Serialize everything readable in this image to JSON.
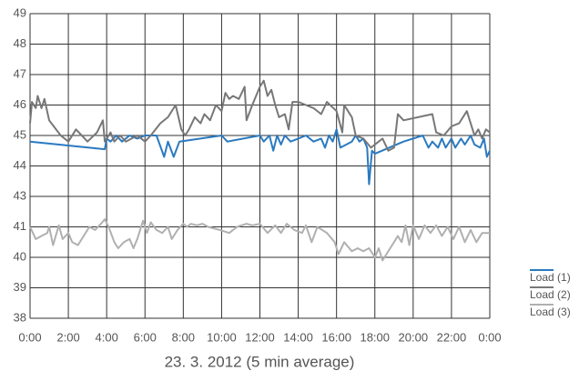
{
  "chart_data": {
    "type": "line",
    "xlabel": "23. 3. 2012 (5 min average)",
    "xlim": [
      0,
      24
    ],
    "xticks": [
      {
        "value": 0,
        "label": "0:00"
      },
      {
        "value": 2,
        "label": "2:00"
      },
      {
        "value": 4,
        "label": "4:00"
      },
      {
        "value": 6,
        "label": "6:00"
      },
      {
        "value": 8,
        "label": "8:00"
      },
      {
        "value": 10,
        "label": "10:00"
      },
      {
        "value": 12,
        "label": "12:00"
      },
      {
        "value": 14,
        "label": "14:00"
      },
      {
        "value": 16,
        "label": "16:00"
      },
      {
        "value": 18,
        "label": "18:00"
      },
      {
        "value": 20,
        "label": "20:00"
      },
      {
        "value": 22,
        "label": "22:00"
      },
      {
        "value": 24,
        "label": "0:00"
      }
    ],
    "ylim": [
      38,
      49
    ],
    "ybreak": [
      41,
      43
    ],
    "yticks": [
      38,
      39,
      40,
      41,
      43,
      44,
      45,
      46,
      47,
      48,
      49
    ],
    "grid": true,
    "legend": "lower right",
    "series": [
      {
        "name": "Load (1)",
        "color": "#2a7ac0",
        "x": [
          0,
          3.9,
          4.0,
          4.2,
          4.5,
          4.8,
          5.2,
          5.6,
          6.0,
          6.6,
          7.0,
          7.2,
          7.5,
          7.8,
          10.0,
          10.3,
          12.0,
          12.2,
          12.5,
          12.7,
          12.9,
          13.1,
          13.3,
          13.6,
          14.0,
          14.4,
          14.8,
          15.2,
          15.4,
          15.6,
          15.8,
          16.0,
          16.2,
          16.8,
          17.0,
          17.2,
          17.4,
          17.6,
          17.7,
          17.85,
          18.0,
          19.5,
          20.5,
          20.8,
          21.0,
          21.3,
          21.5,
          21.7,
          22.0,
          22.2,
          22.5,
          22.7,
          23.0,
          23.2,
          23.5,
          23.7,
          23.85,
          24
        ],
        "values": [
          44.8,
          44.55,
          44.9,
          44.8,
          45.0,
          44.8,
          45.0,
          44.9,
          45.0,
          45.0,
          44.3,
          44.8,
          44.3,
          44.8,
          45.0,
          44.8,
          45.0,
          44.8,
          45.0,
          44.5,
          45.0,
          44.7,
          45.0,
          44.8,
          44.9,
          45.0,
          44.8,
          44.9,
          44.6,
          45.0,
          44.8,
          45.2,
          44.6,
          44.8,
          45.0,
          44.8,
          44.9,
          44.6,
          43.4,
          44.5,
          44.4,
          44.8,
          45.0,
          44.6,
          44.8,
          44.6,
          44.9,
          44.6,
          44.9,
          44.6,
          44.9,
          44.7,
          45.0,
          44.7,
          44.6,
          44.9,
          44.3,
          44.5
        ]
      },
      {
        "name": "Load (2)",
        "color": "#777777",
        "x": [
          0,
          0.1,
          0.3,
          0.4,
          0.6,
          0.75,
          1,
          1.6,
          2,
          2.4,
          3,
          3.5,
          3.8,
          3.9,
          4.2,
          4.4,
          4.7,
          5,
          5.3,
          5.6,
          6,
          6.3,
          6.8,
          7.2,
          7.6,
          7.9,
          8.1,
          8.3,
          8.6,
          8.9,
          9.1,
          9.4,
          9.7,
          10,
          10.2,
          10.4,
          10.6,
          10.9,
          11.2,
          11.3,
          11.6,
          12.0,
          12.2,
          12.4,
          12.6,
          12.8,
          13.0,
          13.3,
          13.5,
          13.7,
          14.0,
          14.4,
          14.8,
          15.2,
          15.5,
          16,
          16.3,
          16.4,
          16.8,
          17.0,
          17.4,
          17.8,
          18.2,
          18.4,
          18.7,
          19.0,
          19.2,
          19.5,
          21.0,
          21.2,
          21.6,
          22.0,
          22.4,
          22.8,
          23.2,
          23.4,
          23.6,
          23.8,
          24
        ],
        "values": [
          45.4,
          46.1,
          45.9,
          46.3,
          45.9,
          46.2,
          45.5,
          45.0,
          44.8,
          45.2,
          44.8,
          45.1,
          45.5,
          44.8,
          45.1,
          44.8,
          45.0,
          44.8,
          44.9,
          45.0,
          44.8,
          45.0,
          45.4,
          45.6,
          46.0,
          45.2,
          45.0,
          45.2,
          45.6,
          45.4,
          45.7,
          45.5,
          46.0,
          45.8,
          46.4,
          46.2,
          46.3,
          46.2,
          46.6,
          45.5,
          46.0,
          46.6,
          46.8,
          46.3,
          46.5,
          46.0,
          45.6,
          45.7,
          45.2,
          46.1,
          46.1,
          46.0,
          45.9,
          45.7,
          46.1,
          45.8,
          45.1,
          46.0,
          45.6,
          45.0,
          44.9,
          44.6,
          44.8,
          44.9,
          44.5,
          44.6,
          45.7,
          45.5,
          45.7,
          45.1,
          45.0,
          45.3,
          45.4,
          45.8,
          45.0,
          45.2,
          44.9,
          45.2,
          45.1
        ]
      },
      {
        "name": "Load (3)",
        "color": "#b0b0b0",
        "x": [
          0,
          0.3,
          0.6,
          0.9,
          1.0,
          1.2,
          1.5,
          1.7,
          2.0,
          2.2,
          2.5,
          2.8,
          3.1,
          3.4,
          3.7,
          3.9,
          4.1,
          4.4,
          4.6,
          4.9,
          5.2,
          5.4,
          5.6,
          5.9,
          6.1,
          6.3,
          6.6,
          6.9,
          7.2,
          7.4,
          7.7,
          8.0,
          8.2,
          8.4,
          8.7,
          9.0,
          9.3,
          9.9,
          10.4,
          10.8,
          11.3,
          11.6,
          12.0,
          12.4,
          12.8,
          13.1,
          13.4,
          13.8,
          14.2,
          14.4,
          14.7,
          15.0,
          15.5,
          15.9,
          16.1,
          16.4,
          16.8,
          17.1,
          17.4,
          17.7,
          18.0,
          18.2,
          18.4,
          18.8,
          19.0,
          19.2,
          19.4,
          19.6,
          19.8,
          20.0,
          20.3,
          20.6,
          20.9,
          21.2,
          21.5,
          21.8,
          22.1,
          22.4,
          22.7,
          23.0,
          23.3,
          23.6,
          24
        ],
        "values": [
          41,
          40.6,
          40.7,
          40.8,
          41.0,
          40.4,
          41.1,
          40.6,
          40.8,
          40.5,
          40.4,
          40.7,
          41.0,
          40.9,
          41.2,
          41.5,
          41.0,
          40.5,
          40.3,
          40.5,
          40.6,
          40.3,
          40.6,
          41.4,
          40.8,
          41.3,
          40.9,
          40.8,
          41.0,
          40.6,
          40.9,
          41.2,
          41.0,
          41.2,
          41.1,
          41.2,
          41.0,
          40.9,
          40.8,
          41.0,
          41.2,
          41.1,
          41.2,
          40.8,
          41.1,
          40.8,
          41.2,
          40.9,
          40.8,
          41.1,
          40.5,
          41.0,
          40.8,
          40.5,
          40.1,
          40.5,
          40.2,
          40.3,
          40.2,
          40.3,
          40.0,
          40.3,
          39.9,
          40.3,
          40.5,
          40.7,
          40.5,
          41.1,
          40.4,
          41.1,
          40.6,
          41.1,
          40.8,
          41.1,
          40.7,
          41.0,
          40.6,
          41.0,
          40.5,
          40.9,
          40.5,
          40.8,
          40.8
        ]
      }
    ]
  }
}
